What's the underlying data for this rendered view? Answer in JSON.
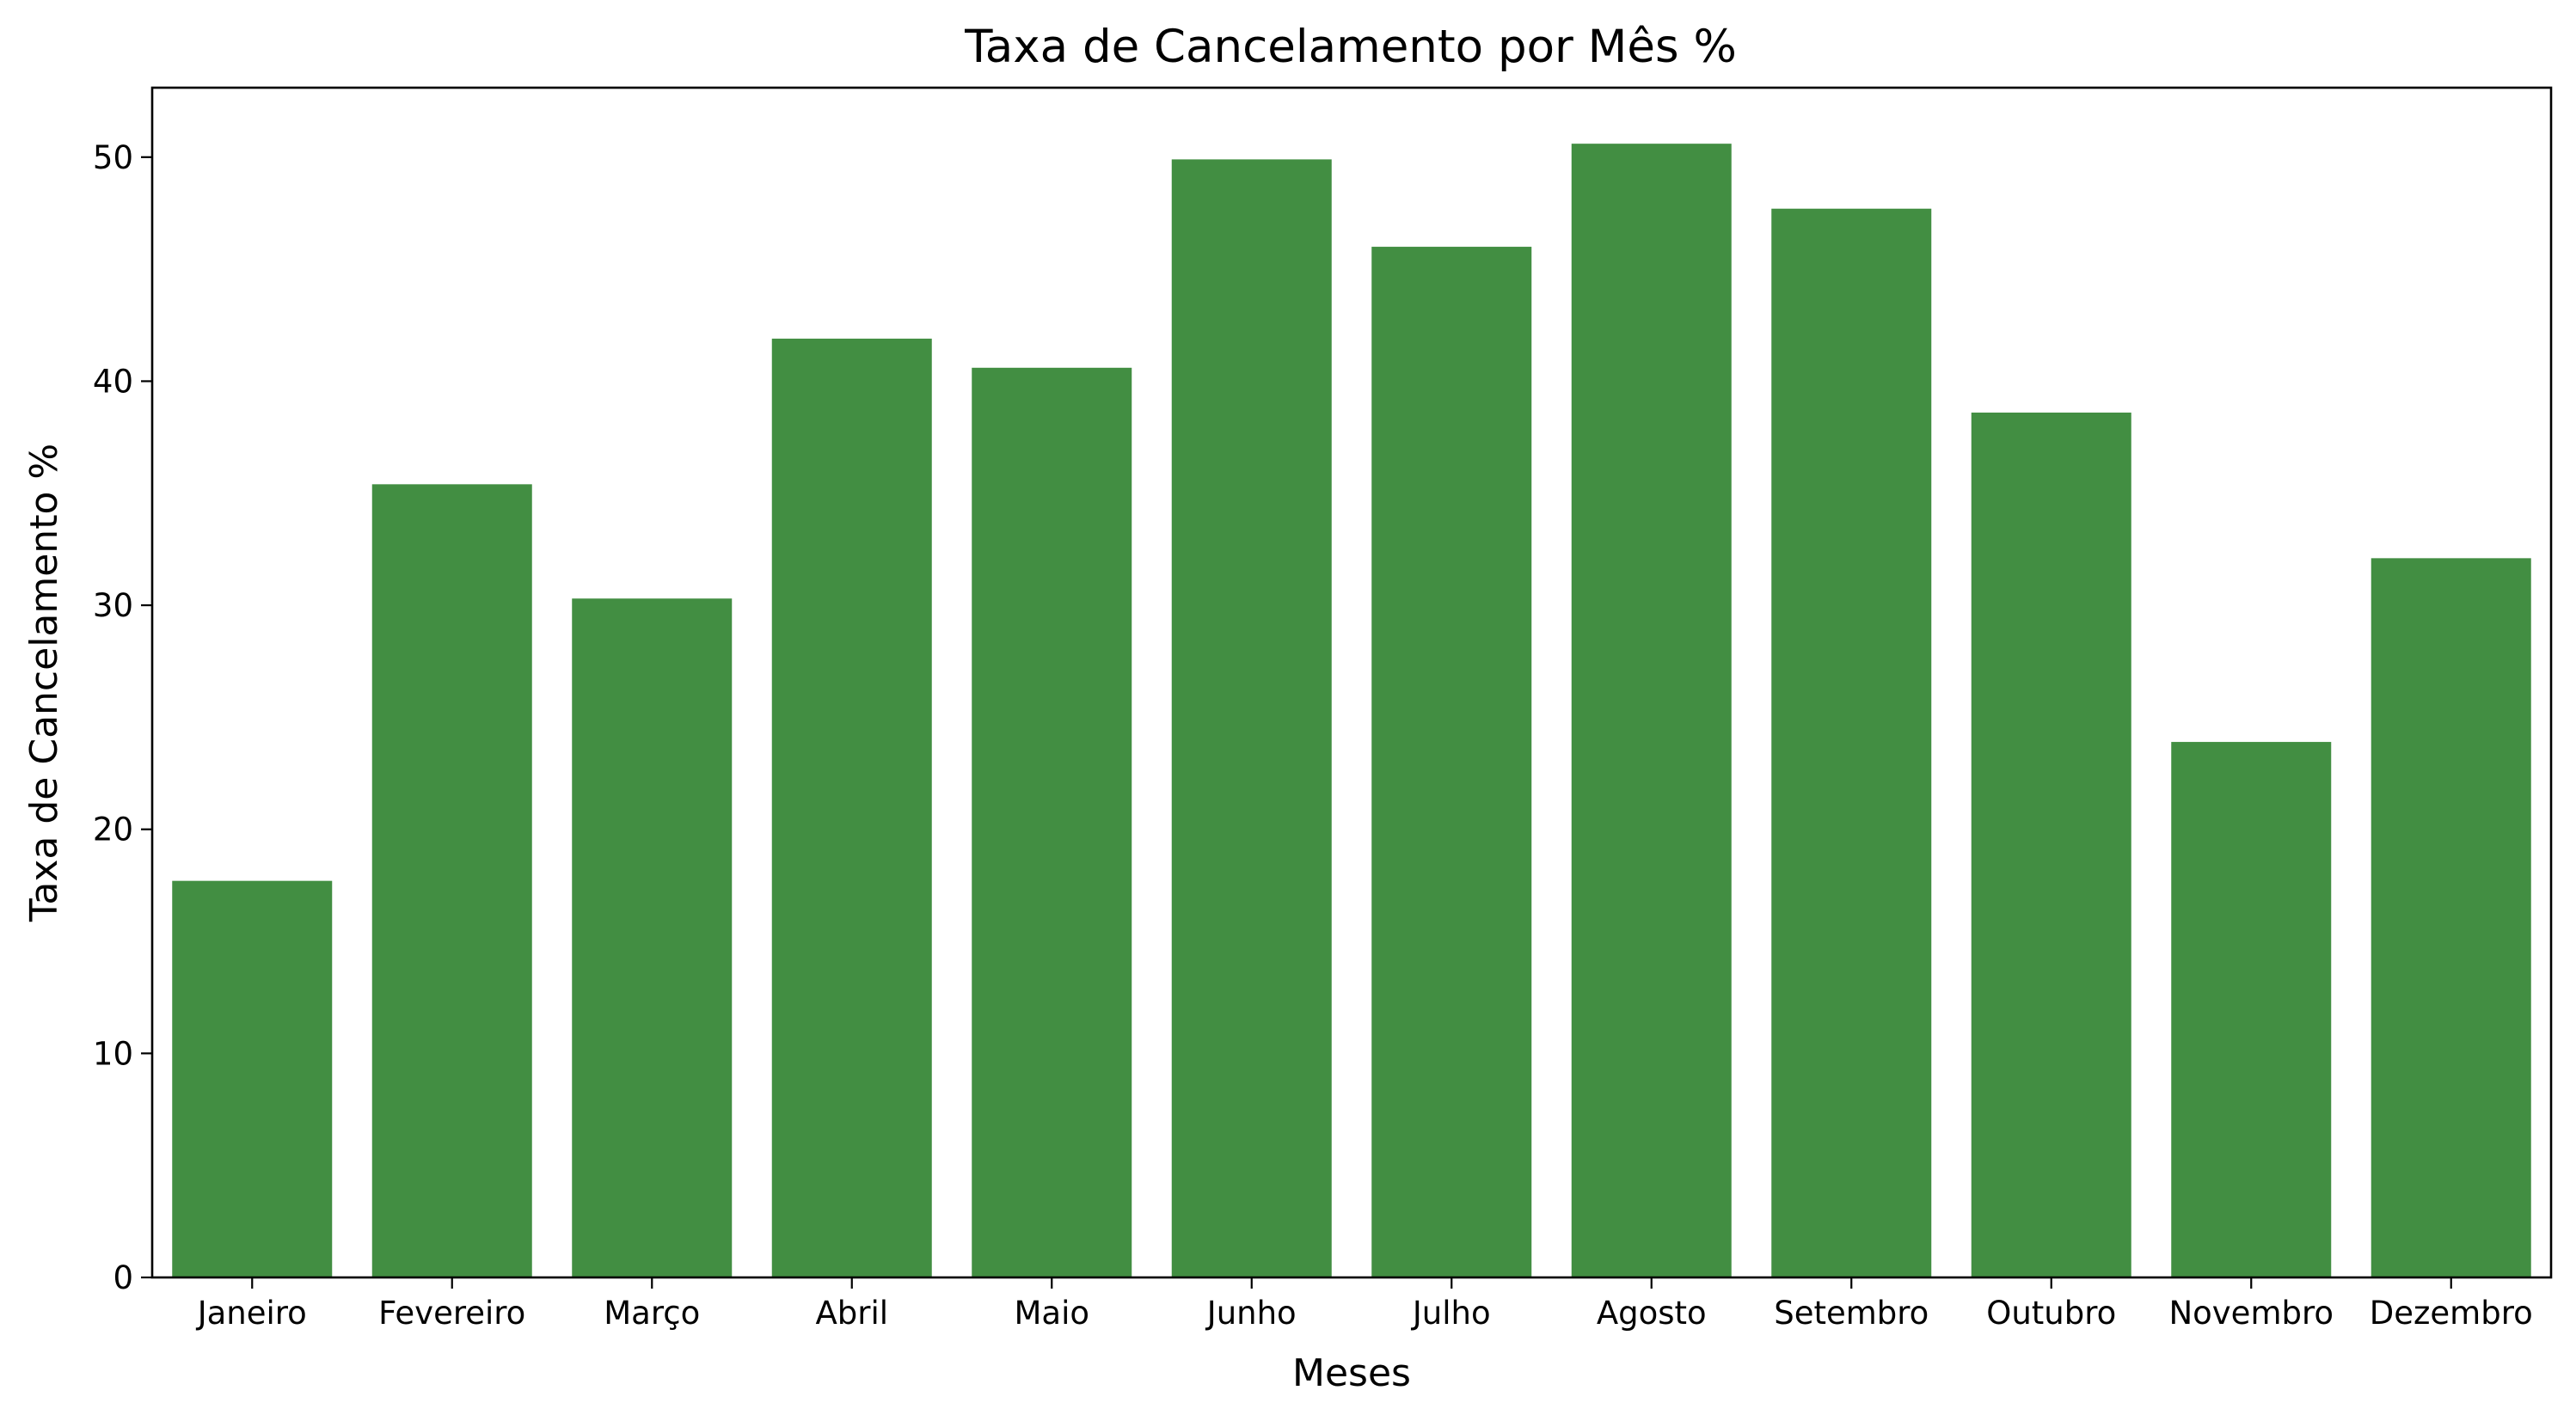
{
  "chart_data": {
    "type": "bar",
    "title": "Taxa de Cancelamento por Mês %",
    "xlabel": "Meses",
    "ylabel": "Taxa de Cancelamento %",
    "categories": [
      "Janeiro",
      "Fevereiro",
      "Março",
      "Abril",
      "Maio",
      "Junho",
      "Julho",
      "Agosto",
      "Setembro",
      "Outubro",
      "Novembro",
      "Dezembro"
    ],
    "values": [
      17.7,
      35.4,
      30.3,
      41.9,
      40.6,
      49.9,
      46.0,
      50.6,
      47.7,
      38.6,
      23.9,
      32.1
    ],
    "ylim": [
      0,
      53.1
    ],
    "yticks": [
      0,
      10,
      20,
      30,
      40,
      50
    ],
    "grid": false,
    "legend": "none",
    "bar_color": "#428E42"
  }
}
